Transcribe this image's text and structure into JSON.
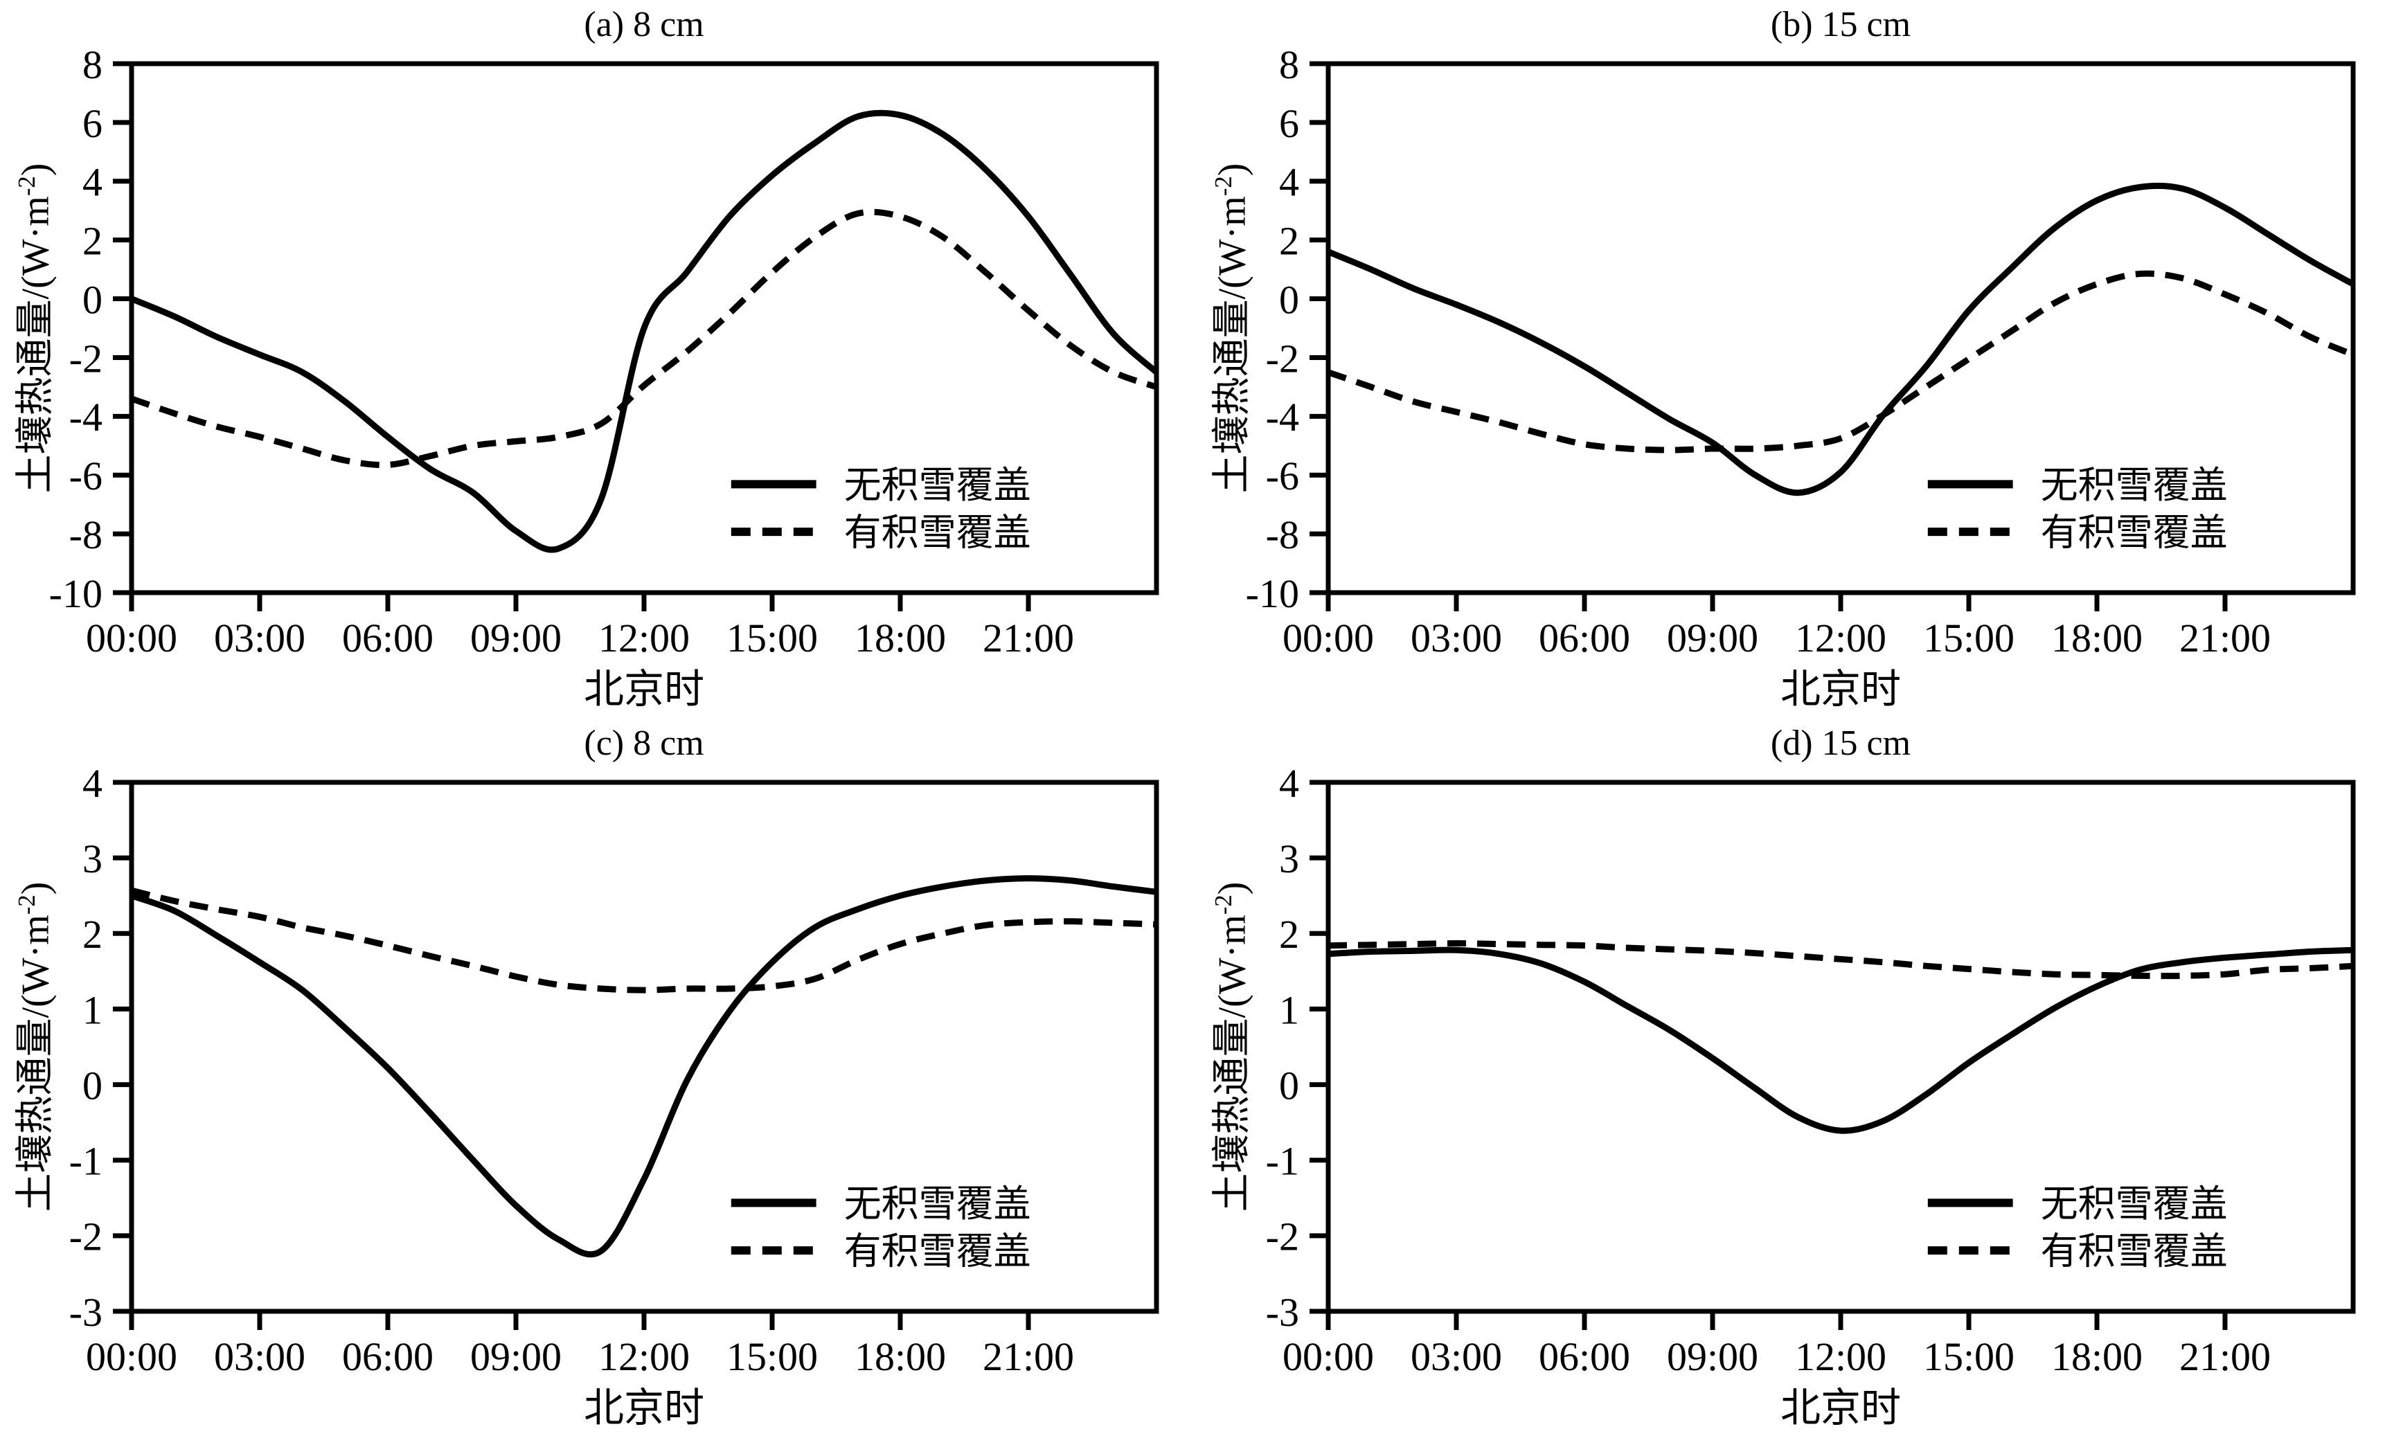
{
  "figure": {
    "background": "#ffffff",
    "line_color": "#000000",
    "x_label": "北京时",
    "y_label_prefix": "土壤热通量/(W·m",
    "y_label_sup": "-2",
    "y_label_suffix": ")",
    "x_tick_hours": [
      0,
      3,
      6,
      9,
      12,
      15,
      18,
      21
    ],
    "x_ticks": [
      "00:00",
      "03:00",
      "06:00",
      "09:00",
      "12:00",
      "15:00",
      "18:00",
      "21:00"
    ],
    "legend": [
      {
        "label": "无积雪覆盖",
        "style": "solid"
      },
      {
        "label": "有积雪覆盖",
        "style": "dashed"
      }
    ]
  },
  "chart_data": [
    {
      "id": "a",
      "type": "line",
      "title": "(a) 8 cm",
      "xlabel": "北京时",
      "ylabel": "土壤热通量/(W·m⁻²)",
      "xlim_hours": [
        0,
        24
      ],
      "ylim": [
        -10,
        8
      ],
      "ytick_step": 2,
      "x_hours": [
        0,
        1,
        2,
        3,
        4,
        5,
        6,
        7,
        8,
        9,
        10,
        11,
        12,
        13,
        14,
        15,
        16,
        17,
        18,
        19,
        20,
        21,
        22,
        23,
        24
      ],
      "series": [
        {
          "name": "无积雪覆盖",
          "style": "solid",
          "values": [
            0.0,
            -0.6,
            -1.3,
            -1.9,
            -2.5,
            -3.5,
            -4.7,
            -5.8,
            -6.6,
            -7.9,
            -8.5,
            -6.8,
            -1.0,
            0.9,
            2.8,
            4.2,
            5.3,
            6.2,
            6.25,
            5.6,
            4.4,
            2.8,
            0.8,
            -1.2,
            -2.5
          ]
        },
        {
          "name": "有积雪覆盖",
          "style": "dashed",
          "values": [
            -3.4,
            -3.9,
            -4.35,
            -4.7,
            -5.1,
            -5.5,
            -5.65,
            -5.35,
            -5.0,
            -4.85,
            -4.7,
            -4.25,
            -2.95,
            -1.8,
            -0.5,
            0.9,
            2.1,
            2.9,
            2.8,
            2.1,
            0.9,
            -0.4,
            -1.6,
            -2.5,
            -3.0
          ]
        }
      ]
    },
    {
      "id": "b",
      "type": "line",
      "title": "(b) 15 cm",
      "xlabel": "北京时",
      "ylabel": "土壤热通量/(W·m⁻²)",
      "xlim_hours": [
        0,
        24
      ],
      "ylim": [
        -10,
        8
      ],
      "ytick_step": 2,
      "x_hours": [
        0,
        1,
        2,
        3,
        4,
        5,
        6,
        7,
        8,
        9,
        10,
        11,
        12,
        13,
        14,
        15,
        16,
        17,
        18,
        19,
        20,
        21,
        22,
        23,
        24
      ],
      "series": [
        {
          "name": "无积雪覆盖",
          "style": "solid",
          "values": [
            1.6,
            1.0,
            0.35,
            -0.2,
            -0.8,
            -1.5,
            -2.3,
            -3.2,
            -4.1,
            -4.9,
            -6.0,
            -6.6,
            -5.9,
            -3.95,
            -2.3,
            -0.4,
            1.05,
            2.4,
            3.35,
            3.8,
            3.75,
            3.1,
            2.2,
            1.3,
            0.5
          ]
        },
        {
          "name": "有积雪覆盖",
          "style": "dashed",
          "values": [
            -2.5,
            -3.0,
            -3.5,
            -3.85,
            -4.2,
            -4.6,
            -4.95,
            -5.1,
            -5.15,
            -5.1,
            -5.1,
            -5.0,
            -4.75,
            -3.95,
            -3.0,
            -2.05,
            -1.1,
            -0.15,
            0.5,
            0.85,
            0.7,
            0.15,
            -0.5,
            -1.3,
            -1.9
          ]
        }
      ]
    },
    {
      "id": "c",
      "type": "line",
      "title": "(c) 8 cm",
      "xlabel": "北京时",
      "ylabel": "土壤热通量/(W·m⁻²)",
      "xlim_hours": [
        0,
        24
      ],
      "ylim": [
        -3,
        4
      ],
      "ytick_step": 1,
      "x_hours": [
        0,
        1,
        2,
        3,
        4,
        5,
        6,
        7,
        8,
        9,
        10,
        11,
        12,
        13,
        14,
        15,
        16,
        17,
        18,
        19,
        20,
        21,
        22,
        23,
        24
      ],
      "series": [
        {
          "name": "无积雪覆盖",
          "style": "solid",
          "values": [
            2.5,
            2.3,
            1.97,
            1.62,
            1.25,
            0.75,
            0.22,
            -0.38,
            -1.0,
            -1.6,
            -2.05,
            -2.2,
            -1.25,
            0.05,
            0.97,
            1.62,
            2.08,
            2.32,
            2.5,
            2.62,
            2.7,
            2.73,
            2.7,
            2.62,
            2.55
          ]
        },
        {
          "name": "有积雪覆盖",
          "style": "dashed",
          "values": [
            2.57,
            2.43,
            2.32,
            2.22,
            2.08,
            1.97,
            1.84,
            1.7,
            1.57,
            1.43,
            1.32,
            1.27,
            1.25,
            1.27,
            1.27,
            1.3,
            1.4,
            1.65,
            1.86,
            2.0,
            2.11,
            2.15,
            2.16,
            2.14,
            2.12
          ]
        }
      ]
    },
    {
      "id": "d",
      "type": "line",
      "title": "(d) 15 cm",
      "xlabel": "北京时",
      "ylabel": "土壤热通量/(W·m⁻²)",
      "xlim_hours": [
        0,
        24
      ],
      "ylim": [
        -3,
        4
      ],
      "ytick_step": 1,
      "x_hours": [
        0,
        1,
        2,
        3,
        4,
        5,
        6,
        7,
        8,
        9,
        10,
        11,
        12,
        13,
        14,
        15,
        16,
        17,
        18,
        19,
        20,
        21,
        22,
        23,
        24
      ],
      "series": [
        {
          "name": "无积雪覆盖",
          "style": "solid",
          "values": [
            1.73,
            1.76,
            1.77,
            1.78,
            1.73,
            1.6,
            1.36,
            1.04,
            0.72,
            0.35,
            -0.05,
            -0.43,
            -0.61,
            -0.48,
            -0.13,
            0.29,
            0.66,
            1.01,
            1.3,
            1.52,
            1.62,
            1.68,
            1.72,
            1.76,
            1.78
          ]
        },
        {
          "name": "有积雪覆盖",
          "style": "dashed",
          "values": [
            1.84,
            1.85,
            1.86,
            1.87,
            1.86,
            1.85,
            1.84,
            1.81,
            1.79,
            1.77,
            1.74,
            1.7,
            1.66,
            1.62,
            1.57,
            1.53,
            1.49,
            1.46,
            1.45,
            1.44,
            1.44,
            1.46,
            1.52,
            1.54,
            1.57
          ]
        }
      ]
    }
  ]
}
